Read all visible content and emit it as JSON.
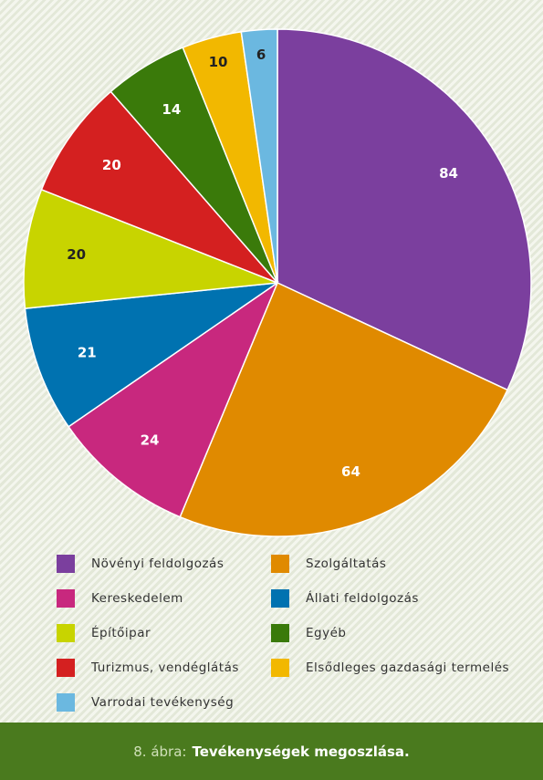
{
  "chart_data": {
    "type": "pie",
    "categories": [
      "Növényi feldolgozás",
      "Szolgáltatás",
      "Kereskedelem",
      "Állati feldolgozás",
      "Építőipar",
      "Turizmus, vendéglátás",
      "Egyéb",
      "Elsődleges gazdasági termelés",
      "Varrodai tevékenység"
    ],
    "values": [
      84,
      64,
      24,
      21,
      20,
      20,
      14,
      10,
      6
    ],
    "colors": [
      "#7b3f9e",
      "#e08a00",
      "#c8287e",
      "#0072b0",
      "#c8d400",
      "#d42020",
      "#3a7a0a",
      "#f2b800",
      "#6bb8e0"
    ],
    "figure_label": "8. ábra:",
    "title": "Tevékenységek megoszlása."
  }
}
